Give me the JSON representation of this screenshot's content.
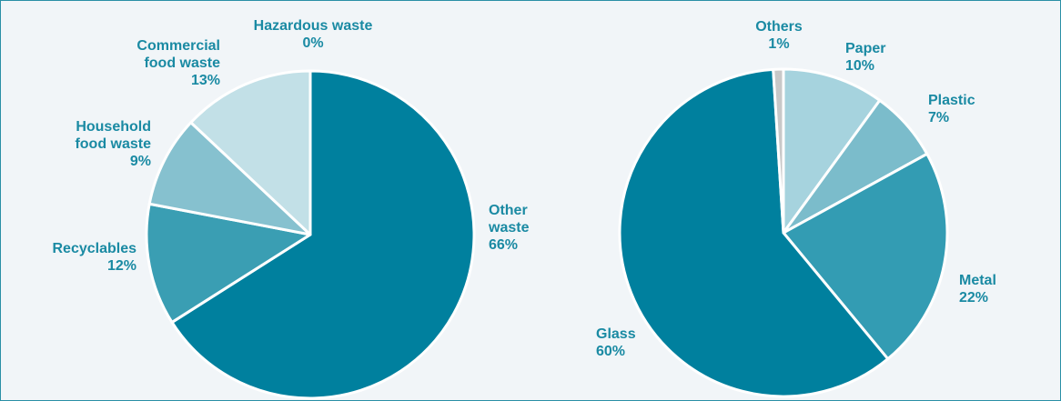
{
  "chart_data": [
    {
      "type": "pie",
      "title": "",
      "legend": "none",
      "slices": [
        {
          "lines": [
            "Other",
            "waste"
          ],
          "value": 66,
          "value_label": "66%",
          "color": "#00809e"
        },
        {
          "lines": [
            "Recyclables"
          ],
          "value": 12,
          "value_label": "12%",
          "color": "#3a9eb3"
        },
        {
          "lines": [
            "Household",
            "food waste"
          ],
          "value": 9,
          "value_label": "9%",
          "color": "#86c1cf"
        },
        {
          "lines": [
            "Commercial",
            "food waste"
          ],
          "value": 13,
          "value_label": "13%",
          "color": "#c2e0e7"
        },
        {
          "lines": [
            "Hazardous waste"
          ],
          "value": 0,
          "value_label": "0%",
          "color": "#d8d8d8"
        }
      ]
    },
    {
      "type": "pie",
      "title": "",
      "legend": "none",
      "slices": [
        {
          "lines": [
            "Paper"
          ],
          "value": 10,
          "value_label": "10%",
          "color": "#a6d3de"
        },
        {
          "lines": [
            "Plastic"
          ],
          "value": 7,
          "value_label": "7%",
          "color": "#7bbccb"
        },
        {
          "lines": [
            "Metal"
          ],
          "value": 22,
          "value_label": "22%",
          "color": "#339cb3"
        },
        {
          "lines": [
            "Glass"
          ],
          "value": 60,
          "value_label": "60%",
          "color": "#00809e"
        },
        {
          "lines": [
            "Others"
          ],
          "value": 1,
          "value_label": "1%",
          "color": "#c8c8c8"
        }
      ]
    }
  ]
}
